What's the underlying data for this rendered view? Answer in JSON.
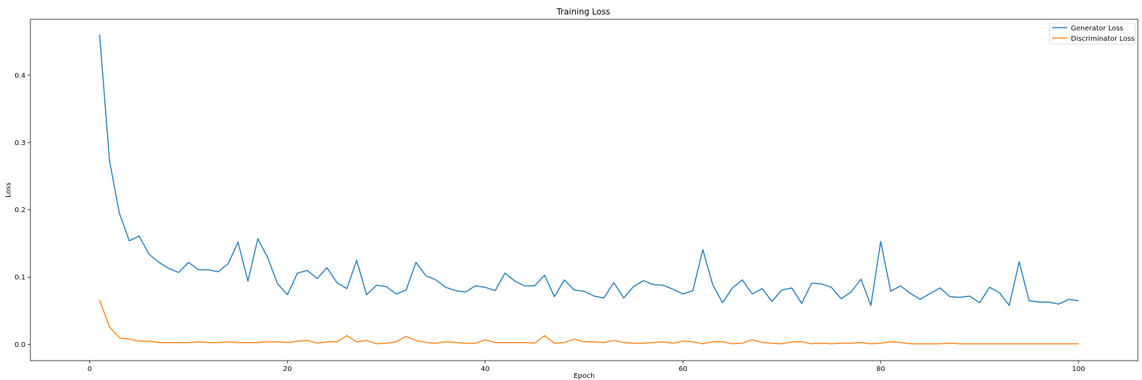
{
  "chart_data": {
    "type": "line",
    "title": "Training Loss",
    "xlabel": "Epoch",
    "ylabel": "Loss",
    "xlim": [
      -6,
      106
    ],
    "ylim": [
      -0.024,
      0.483
    ],
    "xticks": [
      0,
      20,
      40,
      60,
      80,
      100
    ],
    "xtick_labels": [
      "0",
      "20",
      "40",
      "60",
      "80",
      "100"
    ],
    "yticks": [
      0.0,
      0.1,
      0.2,
      0.3,
      0.4
    ],
    "ytick_labels": [
      "0.0",
      "0.1",
      "0.2",
      "0.3",
      "0.4"
    ],
    "grid": false,
    "legend_position": "upper right",
    "x": [
      1,
      2,
      3,
      4,
      5,
      6,
      7,
      8,
      9,
      10,
      11,
      12,
      13,
      14,
      15,
      16,
      17,
      18,
      19,
      20,
      21,
      22,
      23,
      24,
      25,
      26,
      27,
      28,
      29,
      30,
      31,
      32,
      33,
      34,
      35,
      36,
      37,
      38,
      39,
      40,
      41,
      42,
      43,
      44,
      45,
      46,
      47,
      48,
      49,
      50,
      51,
      52,
      53,
      54,
      55,
      56,
      57,
      58,
      59,
      60,
      61,
      62,
      63,
      64,
      65,
      66,
      67,
      68,
      69,
      70,
      71,
      72,
      73,
      74,
      75,
      76,
      77,
      78,
      79,
      80,
      81,
      82,
      83,
      84,
      85,
      86,
      87,
      88,
      89,
      90,
      91,
      92,
      93,
      94,
      95,
      96,
      97,
      98,
      99,
      100
    ],
    "series": [
      {
        "name": "Generator Loss",
        "color": "#1f77b4",
        "values": [
          0.46,
          0.273,
          0.195,
          0.154,
          0.161,
          0.134,
          0.122,
          0.113,
          0.107,
          0.122,
          0.111,
          0.111,
          0.108,
          0.12,
          0.152,
          0.094,
          0.157,
          0.129,
          0.09,
          0.074,
          0.106,
          0.11,
          0.098,
          0.114,
          0.092,
          0.083,
          0.125,
          0.074,
          0.088,
          0.086,
          0.075,
          0.081,
          0.122,
          0.102,
          0.096,
          0.085,
          0.08,
          0.078,
          0.087,
          0.085,
          0.08,
          0.106,
          0.094,
          0.087,
          0.087,
          0.103,
          0.071,
          0.096,
          0.081,
          0.079,
          0.072,
          0.069,
          0.092,
          0.069,
          0.086,
          0.095,
          0.089,
          0.088,
          0.082,
          0.075,
          0.08,
          0.141,
          0.089,
          0.062,
          0.084,
          0.096,
          0.075,
          0.083,
          0.064,
          0.081,
          0.084,
          0.061,
          0.091,
          0.09,
          0.085,
          0.068,
          0.078,
          0.097,
          0.058,
          0.153,
          0.079,
          0.087,
          0.076,
          0.067,
          0.076,
          0.084,
          0.071,
          0.07,
          0.072,
          0.062,
          0.085,
          0.077,
          0.058,
          0.123,
          0.065,
          0.063,
          0.063,
          0.06,
          0.067,
          0.065
        ]
      },
      {
        "name": "Discriminator Loss",
        "color": "#ff7f0e",
        "values": [
          0.066,
          0.026,
          0.01,
          0.008,
          0.005,
          0.005,
          0.003,
          0.003,
          0.003,
          0.003,
          0.004,
          0.003,
          0.003,
          0.004,
          0.003,
          0.003,
          0.003,
          0.004,
          0.004,
          0.003,
          0.005,
          0.006,
          0.002,
          0.004,
          0.004,
          0.013,
          0.004,
          0.006,
          0.001,
          0.002,
          0.004,
          0.012,
          0.006,
          0.003,
          0.002,
          0.004,
          0.003,
          0.002,
          0.002,
          0.007,
          0.003,
          0.003,
          0.003,
          0.003,
          0.002,
          0.013,
          0.002,
          0.003,
          0.008,
          0.004,
          0.004,
          0.003,
          0.006,
          0.003,
          0.002,
          0.002,
          0.003,
          0.004,
          0.002,
          0.005,
          0.004,
          0.001,
          0.004,
          0.004,
          0.001,
          0.002,
          0.007,
          0.003,
          0.002,
          0.001,
          0.004,
          0.004,
          0.001,
          0.002,
          0.001,
          0.002,
          0.002,
          0.003,
          0.001,
          0.002,
          0.004,
          0.003,
          0.001,
          0.001,
          0.001,
          0.001,
          0.002,
          0.001,
          0.001,
          0.001,
          0.001,
          0.001,
          0.001,
          0.001,
          0.001,
          0.001,
          0.001,
          0.001,
          0.001,
          0.001
        ]
      }
    ]
  }
}
